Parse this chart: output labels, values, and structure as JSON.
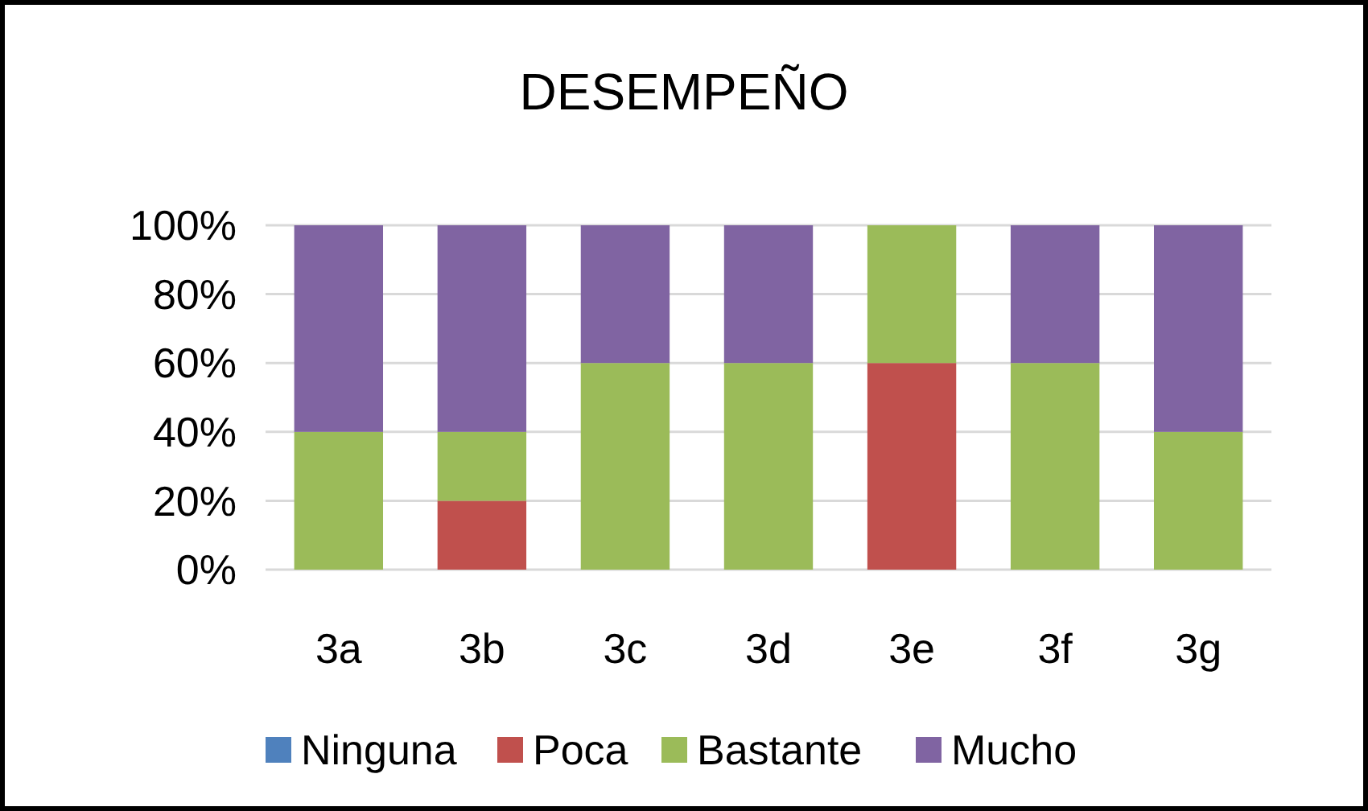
{
  "chart_data": {
    "type": "bar",
    "title": "DESEMPEÑO",
    "stacked": true,
    "categories": [
      "3a",
      "3b",
      "3c",
      "3d",
      "3e",
      "3f",
      "3g"
    ],
    "series": [
      {
        "name": "Ninguna",
        "color": "#4f81bd",
        "values": [
          0,
          0,
          0,
          0,
          0,
          0,
          0
        ]
      },
      {
        "name": "Poca",
        "color": "#c0504d",
        "values": [
          0,
          20,
          0,
          0,
          60,
          0,
          0
        ]
      },
      {
        "name": "Bastante",
        "color": "#9bbb59",
        "values": [
          40,
          20,
          60,
          60,
          40,
          60,
          40
        ]
      },
      {
        "name": "Mucho",
        "color": "#8064a2",
        "values": [
          60,
          60,
          40,
          40,
          0,
          40,
          60
        ]
      }
    ],
    "ylim": [
      0,
      100
    ],
    "yticks": [
      {
        "value": 0,
        "label": "0%"
      },
      {
        "value": 20,
        "label": "20%"
      },
      {
        "value": 40,
        "label": "40%"
      },
      {
        "value": 60,
        "label": "60%"
      },
      {
        "value": 80,
        "label": "80%"
      },
      {
        "value": 100,
        "label": "100%"
      }
    ],
    "grid": "y",
    "legend": "bottom"
  }
}
